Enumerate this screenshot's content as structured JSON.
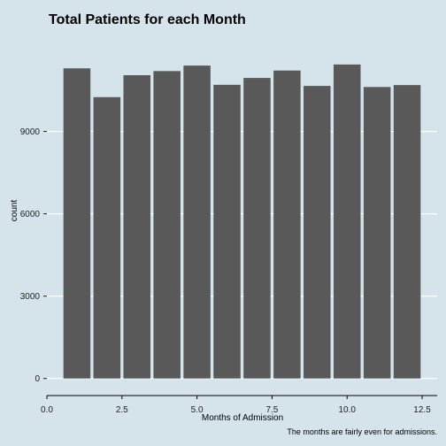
{
  "chart_data": {
    "type": "bar",
    "title": "Total Patients for each Month",
    "xlabel": "Months of Admission",
    "ylabel": "count",
    "caption": "The months are fairly even for admissions.",
    "x": [
      1,
      2,
      3,
      4,
      5,
      6,
      7,
      8,
      9,
      10,
      11,
      12
    ],
    "values": [
      11300,
      10250,
      11050,
      11200,
      11400,
      10700,
      10950,
      11220,
      10660,
      11440,
      10620,
      10690
    ],
    "xlim": [
      0,
      13
    ],
    "ylim": [
      -300,
      12500
    ],
    "x_ticks": [
      0.0,
      2.5,
      5.0,
      7.5,
      10.0,
      12.5
    ],
    "x_tick_labels": [
      "0.0",
      "2.5",
      "5.0",
      "7.5",
      "10.0",
      "12.5"
    ],
    "y_ticks": [
      0,
      3000,
      6000,
      9000
    ],
    "y_tick_labels": [
      "0",
      "3000",
      "6000",
      "9000"
    ],
    "grid": "horizontal",
    "colors": {
      "bar": "#595959",
      "background": "#d5e4eb",
      "grid": "#ffffff"
    }
  }
}
